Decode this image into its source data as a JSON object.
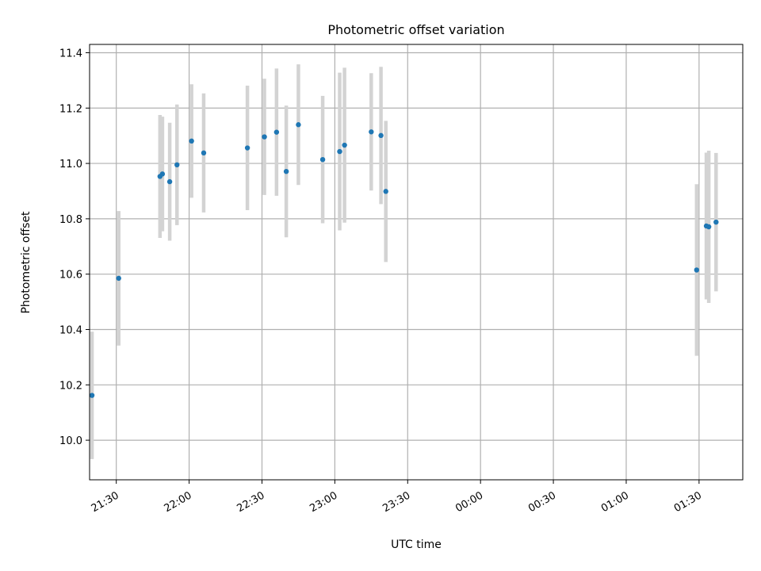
{
  "chart_data": {
    "type": "scatter",
    "title": "Photometric offset variation",
    "xlabel": "UTC time",
    "ylabel": "Photometric offset",
    "grid": true,
    "colors": {
      "point": "#1f77b4",
      "errorbar": "#d3d3d3",
      "grid": "#b0b0b0"
    },
    "xlim": [
      "21:19",
      "01:48"
    ],
    "ylim": [
      9.857,
      11.43
    ],
    "x_ticks": [
      "21:30",
      "22:00",
      "22:30",
      "23:00",
      "23:30",
      "00:00",
      "00:30",
      "01:00",
      "01:30"
    ],
    "y_ticks": [
      "10.0",
      "10.2",
      "10.4",
      "10.6",
      "10.8",
      "11.0",
      "11.2",
      "11.4"
    ],
    "series": [
      {
        "points": [
          {
            "time": "21:20",
            "y": 10.162,
            "err": 0.23
          },
          {
            "time": "21:31",
            "y": 10.585,
            "err": 0.243
          },
          {
            "time": "21:48",
            "y": 10.953,
            "err": 0.222
          },
          {
            "time": "21:49",
            "y": 10.962,
            "err": 0.207
          },
          {
            "time": "21:52",
            "y": 10.934,
            "err": 0.213
          },
          {
            "time": "21:55",
            "y": 10.995,
            "err": 0.218
          },
          {
            "time": "22:01",
            "y": 11.081,
            "err": 0.205
          },
          {
            "time": "22:06",
            "y": 11.038,
            "err": 0.215
          },
          {
            "time": "22:24",
            "y": 11.056,
            "err": 0.225
          },
          {
            "time": "22:31",
            "y": 11.096,
            "err": 0.21
          },
          {
            "time": "22:36",
            "y": 11.113,
            "err": 0.23
          },
          {
            "time": "22:40",
            "y": 10.971,
            "err": 0.238
          },
          {
            "time": "22:45",
            "y": 11.14,
            "err": 0.218
          },
          {
            "time": "22:55",
            "y": 11.014,
            "err": 0.23
          },
          {
            "time": "23:02",
            "y": 11.043,
            "err": 0.285
          },
          {
            "time": "23:04",
            "y": 11.066,
            "err": 0.28
          },
          {
            "time": "23:15",
            "y": 11.114,
            "err": 0.212
          },
          {
            "time": "23:19",
            "y": 11.101,
            "err": 0.248
          },
          {
            "time": "23:21",
            "y": 10.899,
            "err": 0.255
          },
          {
            "time": "01:29",
            "y": 10.615,
            "err": 0.31
          },
          {
            "time": "01:33",
            "y": 10.774,
            "err": 0.265
          },
          {
            "time": "01:34",
            "y": 10.771,
            "err": 0.275
          },
          {
            "time": "01:37",
            "y": 10.788,
            "err": 0.25
          }
        ]
      }
    ]
  }
}
